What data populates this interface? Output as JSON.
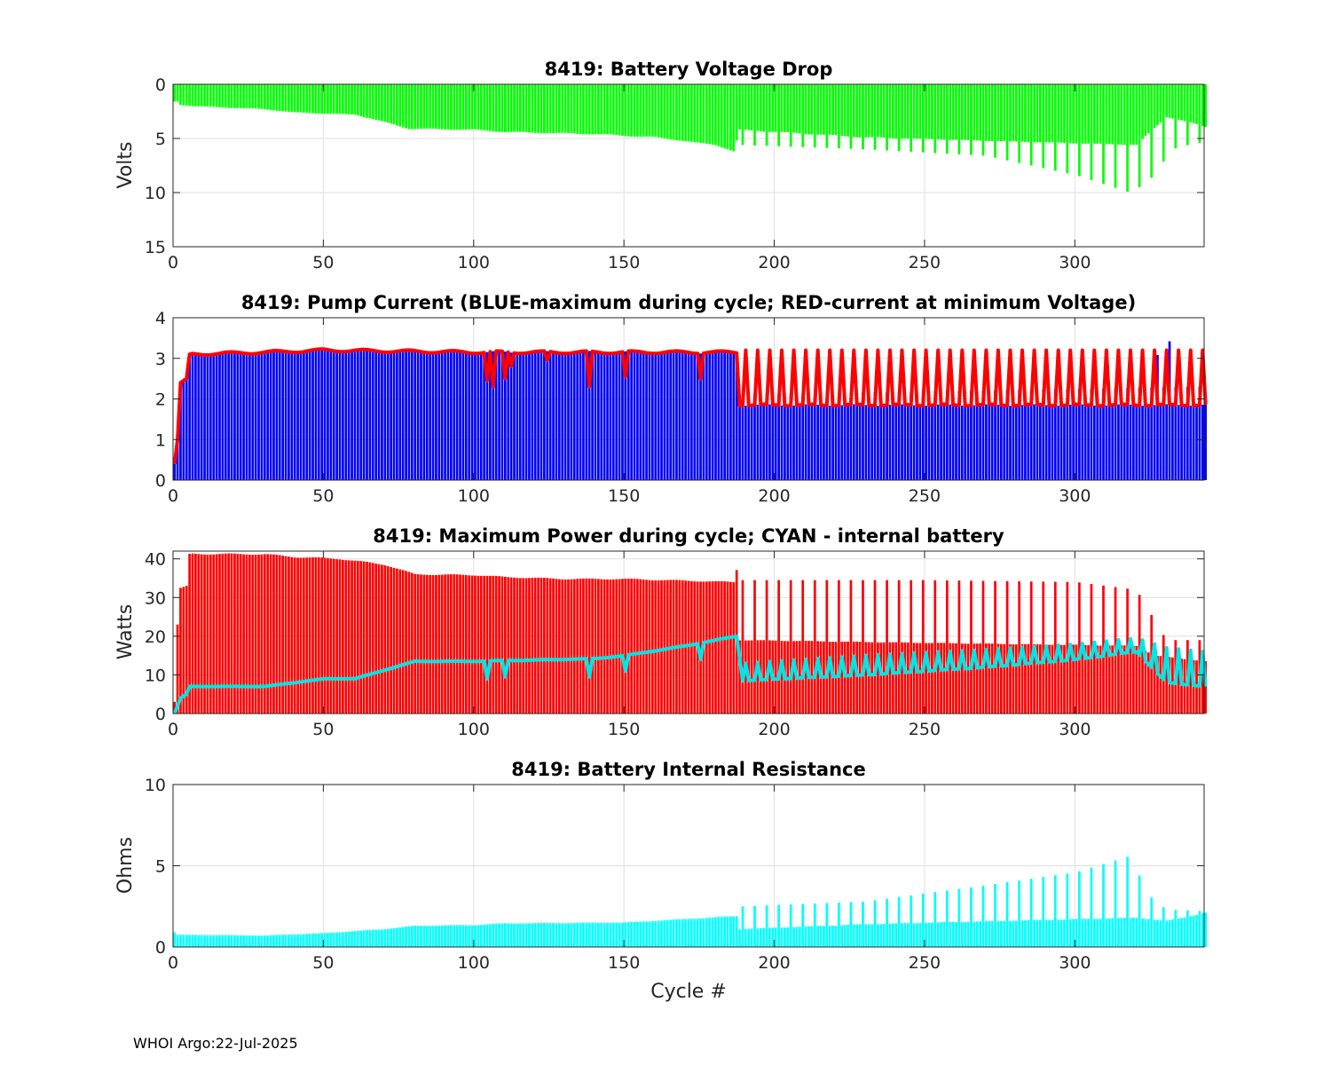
{
  "footer": "WHOI Argo:22-Jul-2025",
  "chart_data": [
    {
      "type": "bar",
      "title": "8419: Battery Voltage Drop",
      "xlabel": "",
      "ylabel": "Volts",
      "xlim": [
        0,
        343
      ],
      "ylim": [
        0,
        15
      ],
      "y_reversed": true,
      "xticks": [
        0,
        50,
        100,
        150,
        200,
        250,
        300
      ],
      "yticks": [
        0,
        5,
        10,
        15
      ],
      "grid": true,
      "series": [
        {
          "name": "Voltage drop",
          "kind": "bars",
          "color": "#00ff00",
          "profile": [
            [
              1,
              1.6
            ],
            [
              2,
              1.9
            ],
            [
              5,
              2.0
            ],
            [
              30,
              2.3
            ],
            [
              40,
              2.6
            ],
            [
              60,
              2.8
            ],
            [
              66,
              3.2
            ],
            [
              78,
              4.1
            ],
            [
              100,
              4.2
            ],
            [
              110,
              4.4
            ],
            [
              140,
              4.6
            ],
            [
              160,
              4.9
            ],
            [
              180,
              5.6
            ],
            [
              186,
              6.2
            ],
            [
              188,
              4.2
            ],
            [
              230,
              4.9
            ],
            [
              320,
              5.6
            ],
            [
              330,
              3.0
            ],
            [
              343,
              3.9
            ]
          ],
          "spikes": {
            "start": 189,
            "every": 4,
            "profile": [
              [
                189,
                5.6
              ],
              [
                230,
                6.0
              ],
              [
                270,
                6.6
              ],
              [
                300,
                8.4
              ],
              [
                318,
                10.0
              ],
              [
                324,
                9.0
              ],
              [
                332,
                6.0
              ],
              [
                340,
                5.4
              ]
            ]
          }
        }
      ]
    },
    {
      "type": "bar",
      "title": "8419: Pump Current (BLUE-maximum during cycle; RED-current at minimum Voltage)",
      "xlabel": "",
      "ylabel": "",
      "xlim": [
        0,
        343
      ],
      "ylim": [
        0,
        4
      ],
      "xticks": [
        0,
        50,
        100,
        150,
        200,
        250,
        300
      ],
      "yticks": [
        0,
        1,
        2,
        3,
        4
      ],
      "grid": true,
      "series": [
        {
          "name": "BLUE-maximum during cycle",
          "kind": "bars",
          "color": "#0000ff",
          "profile": [
            [
              0,
              0.4
            ],
            [
              1,
              1.2
            ],
            [
              2,
              2.4
            ],
            [
              4,
              2.5
            ],
            [
              5,
              3.1
            ],
            [
              30,
              3.15
            ],
            [
              50,
              3.2
            ],
            [
              100,
              3.15
            ],
            [
              187,
              3.15
            ],
            [
              188,
              1.85
            ],
            [
              343,
              1.85
            ]
          ],
          "spikes": {
            "start": 189,
            "every": 4,
            "profile": [
              [
                189,
                2.1
              ],
              [
                343,
                2.3
              ]
            ]
          },
          "extra": [
            [
              327,
              3.08
            ],
            [
              331,
              3.42
            ]
          ]
        },
        {
          "name": "RED-current at minimum Voltage",
          "kind": "line",
          "color": "#ff0000",
          "profile": [
            [
              0,
              0.4
            ],
            [
              1,
              1.0
            ],
            [
              2,
              2.4
            ],
            [
              4,
              2.5
            ],
            [
              5,
              3.1
            ],
            [
              30,
              3.15
            ],
            [
              50,
              3.2
            ],
            [
              100,
              3.15
            ],
            [
              187,
              3.15
            ],
            [
              188,
              1.85
            ],
            [
              343,
              1.85
            ]
          ],
          "dips": [
            [
              104,
              2.45
            ],
            [
              106,
              2.3
            ],
            [
              110,
              2.5
            ],
            [
              112,
              2.8
            ],
            [
              124,
              2.95
            ],
            [
              138,
              2.3
            ],
            [
              150,
              2.55
            ],
            [
              175,
              2.5
            ]
          ],
          "spikes": {
            "start": 190,
            "every": 4,
            "profile": [
              [
                190,
                3.2
              ],
              [
                343,
                3.2
              ]
            ]
          }
        }
      ]
    },
    {
      "type": "bar",
      "title": "8419: Maximum Power during cycle; CYAN - internal battery",
      "xlabel": "",
      "ylabel": "Watts",
      "xlim": [
        0,
        343
      ],
      "ylim": [
        0,
        42
      ],
      "xticks": [
        0,
        50,
        100,
        150,
        200,
        250,
        300
      ],
      "yticks": [
        0,
        10,
        20,
        30,
        40
      ],
      "grid": true,
      "series": [
        {
          "name": "Maximum Power during cycle",
          "kind": "bars",
          "color": "#ff0000",
          "profile": [
            [
              0,
              3
            ],
            [
              1,
              23
            ],
            [
              2,
              32.5
            ],
            [
              4,
              33
            ],
            [
              5,
              41.3
            ],
            [
              30,
              41.2
            ],
            [
              40,
              40.5
            ],
            [
              55,
              40
            ],
            [
              60,
              39.5
            ],
            [
              70,
              38.5
            ],
            [
              80,
              36
            ],
            [
              100,
              35.8
            ],
            [
              110,
              35.3
            ],
            [
              130,
              34.8
            ],
            [
              150,
              34.8
            ],
            [
              186,
              34
            ],
            [
              187,
              37.2
            ],
            [
              188,
              19
            ],
            [
              230,
              18.5
            ],
            [
              320,
              17.5
            ],
            [
              326,
              15
            ],
            [
              343,
              13.5
            ]
          ],
          "spikes": {
            "start": 189,
            "every": 4,
            "profile": [
              [
                189,
                34.5
              ],
              [
                250,
                34.5
              ],
              [
                300,
                34
              ],
              [
                320,
                32
              ],
              [
                330,
                19
              ],
              [
                343,
                19
              ]
            ]
          }
        },
        {
          "name": "CYAN - internal battery",
          "kind": "line",
          "color": "#00e5e5",
          "profile": [
            [
              0,
              0
            ],
            [
              2,
              4
            ],
            [
              4,
              5
            ],
            [
              5,
              7
            ],
            [
              30,
              7
            ],
            [
              50,
              9
            ],
            [
              60,
              9
            ],
            [
              80,
              13.5
            ],
            [
              100,
              13.5
            ],
            [
              140,
              14.2
            ],
            [
              150,
              15
            ],
            [
              170,
              17.5
            ],
            [
              187,
              20
            ],
            [
              189,
              8.5
            ],
            [
              230,
              10
            ],
            [
              270,
              12
            ],
            [
              300,
              14
            ],
            [
              320,
              16
            ],
            [
              330,
              8
            ],
            [
              343,
              7
            ]
          ],
          "dips": [
            [
              104,
              9
            ],
            [
              110,
              9.5
            ],
            [
              138,
              9.5
            ],
            [
              150,
              11
            ],
            [
              175,
              14
            ]
          ],
          "spikes": {
            "start": 190,
            "every": 4,
            "profile": [
              [
                190,
                13
              ],
              [
                230,
                15
              ],
              [
                270,
                16.5
              ],
              [
                300,
                18
              ],
              [
                320,
                19.5
              ],
              [
                330,
                17
              ],
              [
                343,
                16
              ]
            ]
          }
        }
      ]
    },
    {
      "type": "bar",
      "title": "8419: Battery Internal Resistance",
      "xlabel": "Cycle #",
      "ylabel": "Ohms",
      "xlim": [
        0,
        343
      ],
      "ylim": [
        0,
        10
      ],
      "xticks": [
        0,
        50,
        100,
        150,
        200,
        250,
        300
      ],
      "yticks": [
        0,
        5,
        10
      ],
      "grid": true,
      "series": [
        {
          "name": "Internal resistance",
          "kind": "bars",
          "color": "#00ffff",
          "profile": [
            [
              0,
              0.9
            ],
            [
              1,
              0.75
            ],
            [
              30,
              0.7
            ],
            [
              50,
              0.85
            ],
            [
              70,
              1.1
            ],
            [
              80,
              1.3
            ],
            [
              100,
              1.35
            ],
            [
              110,
              1.45
            ],
            [
              150,
              1.5
            ],
            [
              187,
              1.9
            ],
            [
              188,
              1.1
            ],
            [
              230,
              1.4
            ],
            [
              320,
              1.8
            ],
            [
              330,
              1.6
            ],
            [
              343,
              2.1
            ]
          ],
          "spikes": {
            "start": 189,
            "every": 4,
            "profile": [
              [
                189,
                2.5
              ],
              [
                230,
                2.8
              ],
              [
                270,
                3.8
              ],
              [
                300,
                4.6
              ],
              [
                318,
                5.6
              ],
              [
                324,
                3.2
              ],
              [
                330,
                2.3
              ],
              [
                343,
                2.2
              ]
            ]
          }
        }
      ]
    }
  ]
}
